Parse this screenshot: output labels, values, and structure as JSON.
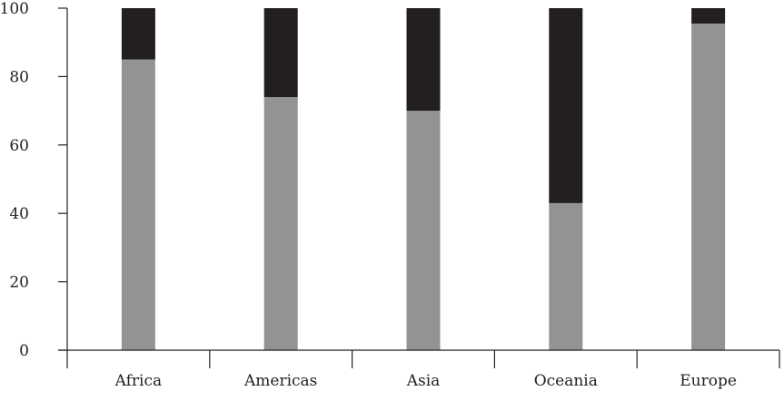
{
  "chart_data": {
    "type": "bar",
    "stacked": true,
    "title": "",
    "xlabel": "",
    "ylabel": "",
    "ylim": [
      0,
      100
    ],
    "yticks": [
      0,
      20,
      40,
      60,
      80,
      100
    ],
    "grid": false,
    "legend": "none",
    "categories": [
      "Africa",
      "Americas",
      "Asia",
      "Oceania",
      "Europe"
    ],
    "series": [
      {
        "color": "#939396",
        "values": [
          85,
          74,
          70,
          43,
          95.5
        ]
      },
      {
        "color": "#231f20",
        "values": [
          15,
          26,
          30,
          57,
          4.5
        ]
      }
    ]
  }
}
